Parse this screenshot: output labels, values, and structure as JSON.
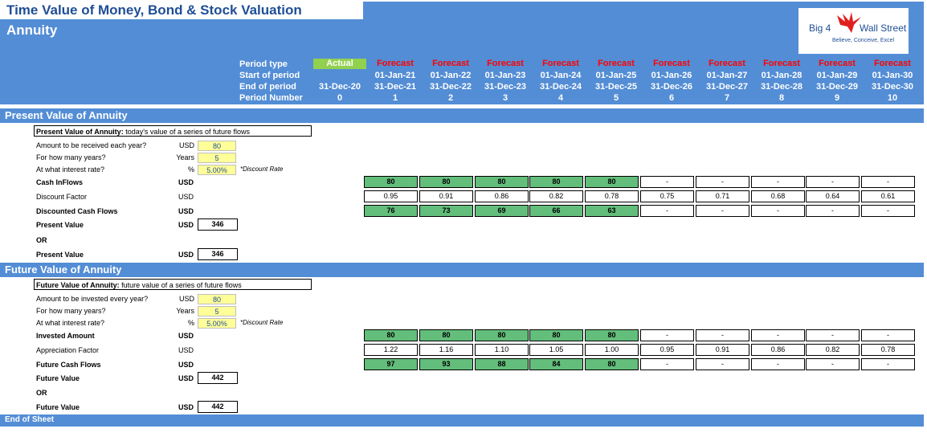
{
  "title": "Time Value of Money, Bond & Stock Valuation",
  "subtitle": "Annuity",
  "logo": {
    "left": "Big 4",
    "right": "Wall Street",
    "tagline": "Believe, Conceive, Excel"
  },
  "timeline": {
    "labels": {
      "period_type": "Period type",
      "start": "Start of period",
      "end": "End of period",
      "number": "Period Number"
    },
    "periods": [
      {
        "type": "Actual",
        "start": "",
        "end": "31-Dec-20",
        "num": "0"
      },
      {
        "type": "Forecast",
        "start": "01-Jan-21",
        "end": "31-Dec-21",
        "num": "1"
      },
      {
        "type": "Forecast",
        "start": "01-Jan-22",
        "end": "31-Dec-22",
        "num": "2"
      },
      {
        "type": "Forecast",
        "start": "01-Jan-23",
        "end": "31-Dec-23",
        "num": "3"
      },
      {
        "type": "Forecast",
        "start": "01-Jan-24",
        "end": "31-Dec-24",
        "num": "4"
      },
      {
        "type": "Forecast",
        "start": "01-Jan-25",
        "end": "31-Dec-25",
        "num": "5"
      },
      {
        "type": "Forecast",
        "start": "01-Jan-26",
        "end": "31-Dec-26",
        "num": "6"
      },
      {
        "type": "Forecast",
        "start": "01-Jan-27",
        "end": "31-Dec-27",
        "num": "7"
      },
      {
        "type": "Forecast",
        "start": "01-Jan-28",
        "end": "31-Dec-28",
        "num": "8"
      },
      {
        "type": "Forecast",
        "start": "01-Jan-29",
        "end": "31-Dec-29",
        "num": "9"
      },
      {
        "type": "Forecast",
        "start": "01-Jan-30",
        "end": "31-Dec-30",
        "num": "10"
      }
    ]
  },
  "pv": {
    "section_title": "Present Value of Annuity",
    "box_bold": "Present Value of Annuity:",
    "box_text": " today's value of a series of future flows",
    "inputs": [
      {
        "label": "Amount to be received each year?",
        "unit": "USD",
        "value": "80"
      },
      {
        "label": "For how many years?",
        "unit": "Years",
        "value": "5"
      },
      {
        "label": "At what interest rate?",
        "unit": "%",
        "value": "5.00%"
      }
    ],
    "rate_note": "*Discount Rate",
    "rows": [
      {
        "label": "Cash InFlows",
        "unit": "USD",
        "bold": true,
        "green": true,
        "values": [
          "80",
          "80",
          "80",
          "80",
          "80",
          "-",
          "-",
          "-",
          "-",
          "-"
        ]
      },
      {
        "label": "Discount Factor",
        "unit": "USD",
        "bold": false,
        "green": false,
        "values": [
          "0.95",
          "0.91",
          "0.86",
          "0.82",
          "0.78",
          "0.75",
          "0.71",
          "0.68",
          "0.64",
          "0.61"
        ]
      },
      {
        "label": "Discounted Cash Flows",
        "unit": "USD",
        "bold": true,
        "green": true,
        "values": [
          "76",
          "73",
          "69",
          "66",
          "63",
          "-",
          "-",
          "-",
          "-",
          "-"
        ]
      }
    ],
    "result1": {
      "label": "Present Value",
      "unit": "USD",
      "value": "346"
    },
    "or": "OR",
    "result2": {
      "label": "Present Value",
      "unit": "USD",
      "value": "346"
    }
  },
  "fv": {
    "section_title": "Future Value of Annuity",
    "box_bold": "Future Value of Annuity:",
    "box_text": " future value of a series of future flows",
    "inputs": [
      {
        "label": "Amount to be invested every year?",
        "unit": "USD",
        "value": "80"
      },
      {
        "label": "For how many years?",
        "unit": "Years",
        "value": "5"
      },
      {
        "label": "At what interest rate?",
        "unit": "%",
        "value": "5.00%"
      }
    ],
    "rate_note": "*Discount Rate",
    "rows": [
      {
        "label": "Invested Amount",
        "unit": "USD",
        "bold": true,
        "green": true,
        "values": [
          "80",
          "80",
          "80",
          "80",
          "80",
          "-",
          "-",
          "-",
          "-",
          "-"
        ]
      },
      {
        "label": "Appreciation Factor",
        "unit": "USD",
        "bold": false,
        "green": false,
        "values": [
          "1.22",
          "1.16",
          "1.10",
          "1.05",
          "1.00",
          "0.95",
          "0.91",
          "0.86",
          "0.82",
          "0.78"
        ]
      },
      {
        "label": "Future Cash Flows",
        "unit": "USD",
        "bold": true,
        "green": true,
        "values": [
          "97",
          "93",
          "88",
          "84",
          "80",
          "-",
          "-",
          "-",
          "-",
          "-"
        ]
      }
    ],
    "result1": {
      "label": "Future Value",
      "unit": "USD",
      "value": "442"
    },
    "or": "OR",
    "result2": {
      "label": "Future Value",
      "unit": "USD",
      "value": "442"
    }
  },
  "footer": "End of Sheet",
  "colors": {
    "header": "#538dd5",
    "actual": "#92d050",
    "forecast": "#ff0000",
    "green_cell": "#63be7b",
    "input": "#ffff99"
  }
}
